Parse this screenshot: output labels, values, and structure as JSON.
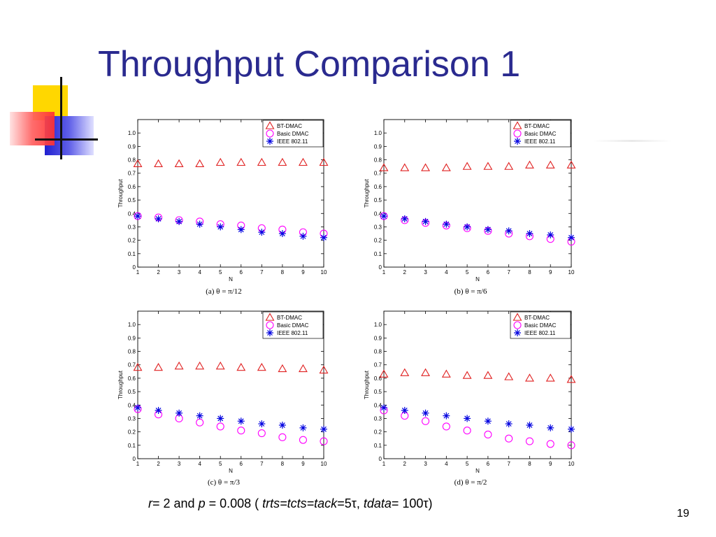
{
  "slide": {
    "title": "Throughput Comparison 1",
    "page_number": "19",
    "caption": {
      "r_label": "r",
      "r_value": "= 2 and ",
      "p_label": "p",
      "p_value": " = 0.008 ( ",
      "times_label": "trts=tcts=tack",
      "times_value": "=5τ, ",
      "tdata_label": "tdata",
      "tdata_value": "= 100τ)"
    }
  },
  "colors": {
    "title": "#2a2a8f",
    "bt_dmac": "#e02020",
    "basic_dmac": "#ff00ff",
    "ieee": "#0000e0"
  },
  "chart_data": [
    {
      "type": "scatter",
      "caption": "(a) θ = π/12",
      "xlabel": "N",
      "ylabel": "Throughput",
      "x": [
        1,
        2,
        3,
        4,
        5,
        6,
        7,
        8,
        9,
        10
      ],
      "xlim": [
        1,
        10
      ],
      "ylim": [
        0,
        1.1
      ],
      "yticks": [
        "0",
        "0.1",
        "0.2",
        "0.3",
        "0.4",
        "0.5",
        "0.6",
        "0.7",
        "0.8",
        "0.9",
        "1.0"
      ],
      "legend_position": "top-right",
      "series": [
        {
          "name": "BT-DMAC",
          "marker": "triangle",
          "values": [
            0.77,
            0.77,
            0.77,
            0.77,
            0.78,
            0.78,
            0.78,
            0.78,
            0.78,
            0.78
          ]
        },
        {
          "name": "Basic DMAC",
          "marker": "circle",
          "values": [
            0.38,
            0.37,
            0.35,
            0.34,
            0.32,
            0.31,
            0.29,
            0.28,
            0.26,
            0.25
          ]
        },
        {
          "name": "IEEE 802.11",
          "marker": "asterisk",
          "values": [
            0.38,
            0.36,
            0.34,
            0.32,
            0.3,
            0.28,
            0.26,
            0.25,
            0.23,
            0.22
          ]
        }
      ]
    },
    {
      "type": "scatter",
      "caption": "(b) θ = π/6",
      "xlabel": "N",
      "ylabel": "Throughput",
      "x": [
        1,
        2,
        3,
        4,
        5,
        6,
        7,
        8,
        9,
        10
      ],
      "xlim": [
        1,
        10
      ],
      "ylim": [
        0,
        1.1
      ],
      "yticks": [
        "0",
        "0.1",
        "0.2",
        "0.3",
        "0.4",
        "0.5",
        "0.6",
        "0.7",
        "0.8",
        "0.9",
        "1.0"
      ],
      "legend_position": "top-right",
      "series": [
        {
          "name": "BT-DMAC",
          "marker": "triangle",
          "values": [
            0.74,
            0.74,
            0.74,
            0.74,
            0.75,
            0.75,
            0.75,
            0.76,
            0.76,
            0.76
          ]
        },
        {
          "name": "Basic DMAC",
          "marker": "circle",
          "values": [
            0.38,
            0.35,
            0.33,
            0.31,
            0.29,
            0.27,
            0.25,
            0.23,
            0.21,
            0.19
          ]
        },
        {
          "name": "IEEE 802.11",
          "marker": "asterisk",
          "values": [
            0.38,
            0.36,
            0.34,
            0.32,
            0.3,
            0.28,
            0.27,
            0.25,
            0.24,
            0.22
          ]
        }
      ]
    },
    {
      "type": "scatter",
      "caption": "(c) θ = π/3",
      "xlabel": "N",
      "ylabel": "Throughput",
      "x": [
        1,
        2,
        3,
        4,
        5,
        6,
        7,
        8,
        9,
        10
      ],
      "xlim": [
        1,
        10
      ],
      "ylim": [
        0,
        1.1
      ],
      "yticks": [
        "0",
        "0.1",
        "0.2",
        "0.3",
        "0.4",
        "0.5",
        "0.6",
        "0.7",
        "0.8",
        "0.9",
        "1.0"
      ],
      "legend_position": "top-right",
      "series": [
        {
          "name": "BT-DMAC",
          "marker": "triangle",
          "values": [
            0.68,
            0.68,
            0.69,
            0.69,
            0.69,
            0.68,
            0.68,
            0.67,
            0.67,
            0.66
          ]
        },
        {
          "name": "Basic DMAC",
          "marker": "circle",
          "values": [
            0.37,
            0.33,
            0.3,
            0.27,
            0.24,
            0.21,
            0.19,
            0.16,
            0.14,
            0.13
          ]
        },
        {
          "name": "IEEE 802.11",
          "marker": "asterisk",
          "values": [
            0.38,
            0.36,
            0.34,
            0.32,
            0.3,
            0.28,
            0.26,
            0.25,
            0.23,
            0.22
          ]
        }
      ]
    },
    {
      "type": "scatter",
      "caption": "(d) θ = π/2",
      "xlabel": "N",
      "ylabel": "Throughput",
      "x": [
        1,
        2,
        3,
        4,
        5,
        6,
        7,
        8,
        9,
        10
      ],
      "xlim": [
        1,
        10
      ],
      "ylim": [
        0,
        1.1
      ],
      "yticks": [
        "0",
        "0.1",
        "0.2",
        "0.3",
        "0.4",
        "0.5",
        "0.6",
        "0.7",
        "0.8",
        "0.9",
        "1.0"
      ],
      "legend_position": "top-right",
      "series": [
        {
          "name": "BT-DMAC",
          "marker": "triangle",
          "values": [
            0.63,
            0.64,
            0.64,
            0.63,
            0.62,
            0.62,
            0.61,
            0.6,
            0.6,
            0.59
          ]
        },
        {
          "name": "Basic DMAC",
          "marker": "circle",
          "values": [
            0.36,
            0.32,
            0.28,
            0.24,
            0.21,
            0.18,
            0.15,
            0.13,
            0.11,
            0.1
          ]
        },
        {
          "name": "IEEE 802.11",
          "marker": "asterisk",
          "values": [
            0.38,
            0.36,
            0.34,
            0.32,
            0.3,
            0.28,
            0.26,
            0.25,
            0.23,
            0.22
          ]
        }
      ]
    }
  ]
}
